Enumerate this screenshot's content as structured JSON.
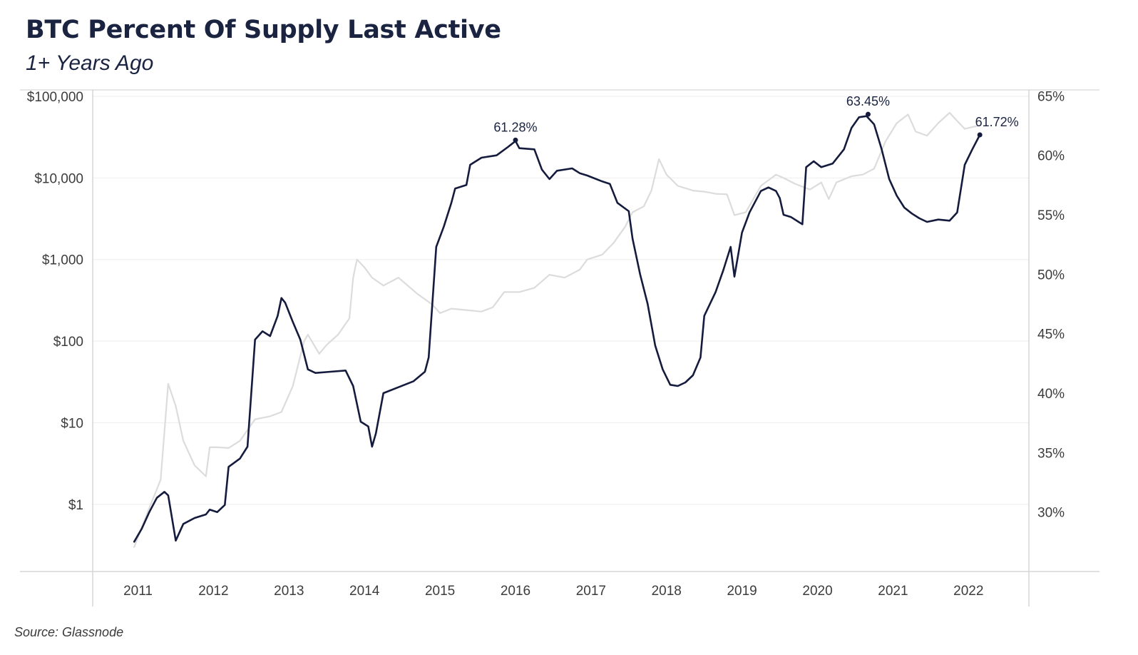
{
  "title": "BTC Percent Of Supply Last Active",
  "subtitle": "1+ Years Ago",
  "source": "Source: Glassnode",
  "colors": {
    "supply_line": "#141b3d",
    "price_line": "#dcdcdc",
    "gridline": "#eeeeee",
    "axis": "#d6d6d6"
  },
  "chart_data": {
    "type": "line",
    "title": "BTC Percent Of Supply Last Active",
    "subtitle": "1+ Years Ago",
    "xlabel": "",
    "x_ticks": [
      "2011",
      "2012",
      "2013",
      "2014",
      "2015",
      "2016",
      "2017",
      "2018",
      "2019",
      "2020",
      "2021",
      "2022"
    ],
    "y_left": {
      "label": "",
      "scale": "log",
      "range": [
        0.15,
        120000
      ],
      "ticks": [
        1,
        10,
        100,
        1000,
        10000,
        100000
      ],
      "tick_labels": [
        "$1",
        "$10",
        "$100",
        "$1,000",
        "$10,000",
        "$100,000"
      ]
    },
    "y_right": {
      "label": "",
      "scale": "linear",
      "range": [
        25,
        65.5
      ],
      "ticks": [
        30,
        35,
        40,
        45,
        50,
        55,
        60,
        65
      ],
      "tick_labels": [
        "30%",
        "35%",
        "40%",
        "45%",
        "50%",
        "55%",
        "60%",
        "65%"
      ]
    },
    "grid": true,
    "legend": "none",
    "series": [
      {
        "axis": "right",
        "points": [
          [
            2011.0,
            27.5
          ],
          [
            2011.1,
            28.6
          ],
          [
            2011.2,
            30.0
          ],
          [
            2011.3,
            31.2
          ],
          [
            2011.4,
            31.7
          ],
          [
            2011.45,
            31.4
          ],
          [
            2011.5,
            29.5
          ],
          [
            2011.55,
            27.6
          ],
          [
            2011.65,
            29.0
          ],
          [
            2011.8,
            29.5
          ],
          [
            2011.95,
            29.8
          ],
          [
            2012.0,
            30.2
          ],
          [
            2012.1,
            30.0
          ],
          [
            2012.2,
            30.6
          ],
          [
            2012.25,
            33.8
          ],
          [
            2012.4,
            34.5
          ],
          [
            2012.5,
            35.5
          ],
          [
            2012.55,
            40.0
          ],
          [
            2012.6,
            44.5
          ],
          [
            2012.7,
            45.2
          ],
          [
            2012.8,
            44.8
          ],
          [
            2012.9,
            46.5
          ],
          [
            2012.95,
            48.0
          ],
          [
            2013.0,
            47.6
          ],
          [
            2013.1,
            46.0
          ],
          [
            2013.2,
            44.5
          ],
          [
            2013.3,
            42.0
          ],
          [
            2013.4,
            41.7
          ],
          [
            2013.6,
            41.8
          ],
          [
            2013.8,
            41.9
          ],
          [
            2013.9,
            40.6
          ],
          [
            2014.0,
            37.6
          ],
          [
            2014.1,
            37.2
          ],
          [
            2014.15,
            35.5
          ],
          [
            2014.2,
            36.6
          ],
          [
            2014.3,
            40.0
          ],
          [
            2014.5,
            40.5
          ],
          [
            2014.7,
            41.0
          ],
          [
            2014.85,
            41.8
          ],
          [
            2014.9,
            43.0
          ],
          [
            2015.0,
            52.3
          ],
          [
            2015.1,
            54.0
          ],
          [
            2015.2,
            56.0
          ],
          [
            2015.25,
            57.2
          ],
          [
            2015.4,
            57.5
          ],
          [
            2015.45,
            59.2
          ],
          [
            2015.6,
            59.8
          ],
          [
            2015.8,
            60.0
          ],
          [
            2015.95,
            60.7
          ],
          [
            2016.05,
            61.2
          ],
          [
            2016.1,
            60.6
          ],
          [
            2016.3,
            60.5
          ],
          [
            2016.4,
            58.8
          ],
          [
            2016.5,
            58.0
          ],
          [
            2016.6,
            58.7
          ],
          [
            2016.8,
            58.9
          ],
          [
            2016.9,
            58.5
          ],
          [
            2017.0,
            58.3
          ],
          [
            2017.2,
            57.8
          ],
          [
            2017.3,
            57.6
          ],
          [
            2017.4,
            56.0
          ],
          [
            2017.55,
            55.3
          ],
          [
            2017.6,
            53.0
          ],
          [
            2017.7,
            50.0
          ],
          [
            2017.8,
            47.5
          ],
          [
            2017.9,
            44.0
          ],
          [
            2018.0,
            42.0
          ],
          [
            2018.1,
            40.7
          ],
          [
            2018.2,
            40.6
          ],
          [
            2018.3,
            40.9
          ],
          [
            2018.4,
            41.5
          ],
          [
            2018.5,
            43.0
          ],
          [
            2018.55,
            46.5
          ],
          [
            2018.7,
            48.5
          ],
          [
            2018.8,
            50.3
          ],
          [
            2018.9,
            52.3
          ],
          [
            2018.95,
            49.8
          ],
          [
            2019.05,
            53.5
          ],
          [
            2019.15,
            55.2
          ],
          [
            2019.3,
            57.0
          ],
          [
            2019.4,
            57.3
          ],
          [
            2019.5,
            57.0
          ],
          [
            2019.55,
            56.4
          ],
          [
            2019.6,
            55.0
          ],
          [
            2019.7,
            54.8
          ],
          [
            2019.8,
            54.4
          ],
          [
            2019.85,
            54.2
          ],
          [
            2019.9,
            59.0
          ],
          [
            2020.0,
            59.5
          ],
          [
            2020.1,
            59.0
          ],
          [
            2020.25,
            59.3
          ],
          [
            2020.4,
            60.5
          ],
          [
            2020.5,
            62.3
          ],
          [
            2020.6,
            63.2
          ],
          [
            2020.7,
            63.3
          ],
          [
            2020.8,
            62.6
          ],
          [
            2020.9,
            60.5
          ],
          [
            2021.0,
            58.0
          ],
          [
            2021.1,
            56.6
          ],
          [
            2021.2,
            55.6
          ],
          [
            2021.3,
            55.1
          ],
          [
            2021.4,
            54.7
          ],
          [
            2021.5,
            54.4
          ],
          [
            2021.65,
            54.6
          ],
          [
            2021.8,
            54.5
          ],
          [
            2021.9,
            55.2
          ],
          [
            2022.0,
            59.2
          ],
          [
            2022.1,
            60.5
          ],
          [
            2022.2,
            61.72
          ]
        ]
      },
      {
        "axis": "left",
        "points": [
          [
            2011.0,
            0.3
          ],
          [
            2011.2,
            0.9
          ],
          [
            2011.35,
            2.0
          ],
          [
            2011.45,
            30.0
          ],
          [
            2011.55,
            16.0
          ],
          [
            2011.65,
            6.0
          ],
          [
            2011.8,
            3.0
          ],
          [
            2011.95,
            2.2
          ],
          [
            2012.0,
            5.0
          ],
          [
            2012.1,
            5.0
          ],
          [
            2012.25,
            4.9
          ],
          [
            2012.4,
            6.0
          ],
          [
            2012.6,
            11.0
          ],
          [
            2012.8,
            12.0
          ],
          [
            2012.95,
            13.5
          ],
          [
            2013.1,
            28.0
          ],
          [
            2013.25,
            100.0
          ],
          [
            2013.3,
            120.0
          ],
          [
            2013.45,
            70.0
          ],
          [
            2013.55,
            90.0
          ],
          [
            2013.7,
            120.0
          ],
          [
            2013.85,
            190.0
          ],
          [
            2013.9,
            600.0
          ],
          [
            2013.95,
            1000.0
          ],
          [
            2014.05,
            800.0
          ],
          [
            2014.15,
            600.0
          ],
          [
            2014.3,
            480.0
          ],
          [
            2014.5,
            600.0
          ],
          [
            2014.6,
            500.0
          ],
          [
            2014.75,
            380.0
          ],
          [
            2014.95,
            280.0
          ],
          [
            2015.05,
            220.0
          ],
          [
            2015.2,
            250.0
          ],
          [
            2015.4,
            240.0
          ],
          [
            2015.6,
            230.0
          ],
          [
            2015.75,
            260.0
          ],
          [
            2015.9,
            400.0
          ],
          [
            2016.1,
            400.0
          ],
          [
            2016.3,
            450.0
          ],
          [
            2016.5,
            650.0
          ],
          [
            2016.7,
            600.0
          ],
          [
            2016.9,
            750.0
          ],
          [
            2017.0,
            1000.0
          ],
          [
            2017.2,
            1150.0
          ],
          [
            2017.35,
            1600.0
          ],
          [
            2017.5,
            2500.0
          ],
          [
            2017.6,
            3800.0
          ],
          [
            2017.75,
            4500.0
          ],
          [
            2017.85,
            7000.0
          ],
          [
            2017.95,
            17000.0
          ],
          [
            2018.05,
            11000.0
          ],
          [
            2018.2,
            8000.0
          ],
          [
            2018.4,
            7000.0
          ],
          [
            2018.55,
            6800.0
          ],
          [
            2018.7,
            6400.0
          ],
          [
            2018.85,
            6300.0
          ],
          [
            2018.95,
            3500.0
          ],
          [
            2019.1,
            3800.0
          ],
          [
            2019.3,
            8000.0
          ],
          [
            2019.5,
            11000.0
          ],
          [
            2019.6,
            10000.0
          ],
          [
            2019.75,
            8500.0
          ],
          [
            2019.95,
            7200.0
          ],
          [
            2020.1,
            8800.0
          ],
          [
            2020.2,
            5500.0
          ],
          [
            2020.3,
            8800.0
          ],
          [
            2020.5,
            10500.0
          ],
          [
            2020.65,
            11000.0
          ],
          [
            2020.8,
            13000.0
          ],
          [
            2020.95,
            28000.0
          ],
          [
            2021.1,
            47000.0
          ],
          [
            2021.25,
            60000.0
          ],
          [
            2021.35,
            37000.0
          ],
          [
            2021.5,
            33000.0
          ],
          [
            2021.65,
            47000.0
          ],
          [
            2021.8,
            63000.0
          ],
          [
            2021.9,
            50000.0
          ],
          [
            2022.0,
            40000.0
          ],
          [
            2022.1,
            42000.0
          ],
          [
            2022.2,
            44000.0
          ]
        ]
      }
    ],
    "annotations": [
      {
        "text": "61.28%",
        "x": 2016.05,
        "y": 61.28,
        "axis": "right"
      },
      {
        "text": "63.45%",
        "x": 2020.72,
        "y": 63.45,
        "axis": "right"
      },
      {
        "text": "61.72%",
        "x": 2022.2,
        "y": 61.72,
        "axis": "right"
      }
    ]
  }
}
